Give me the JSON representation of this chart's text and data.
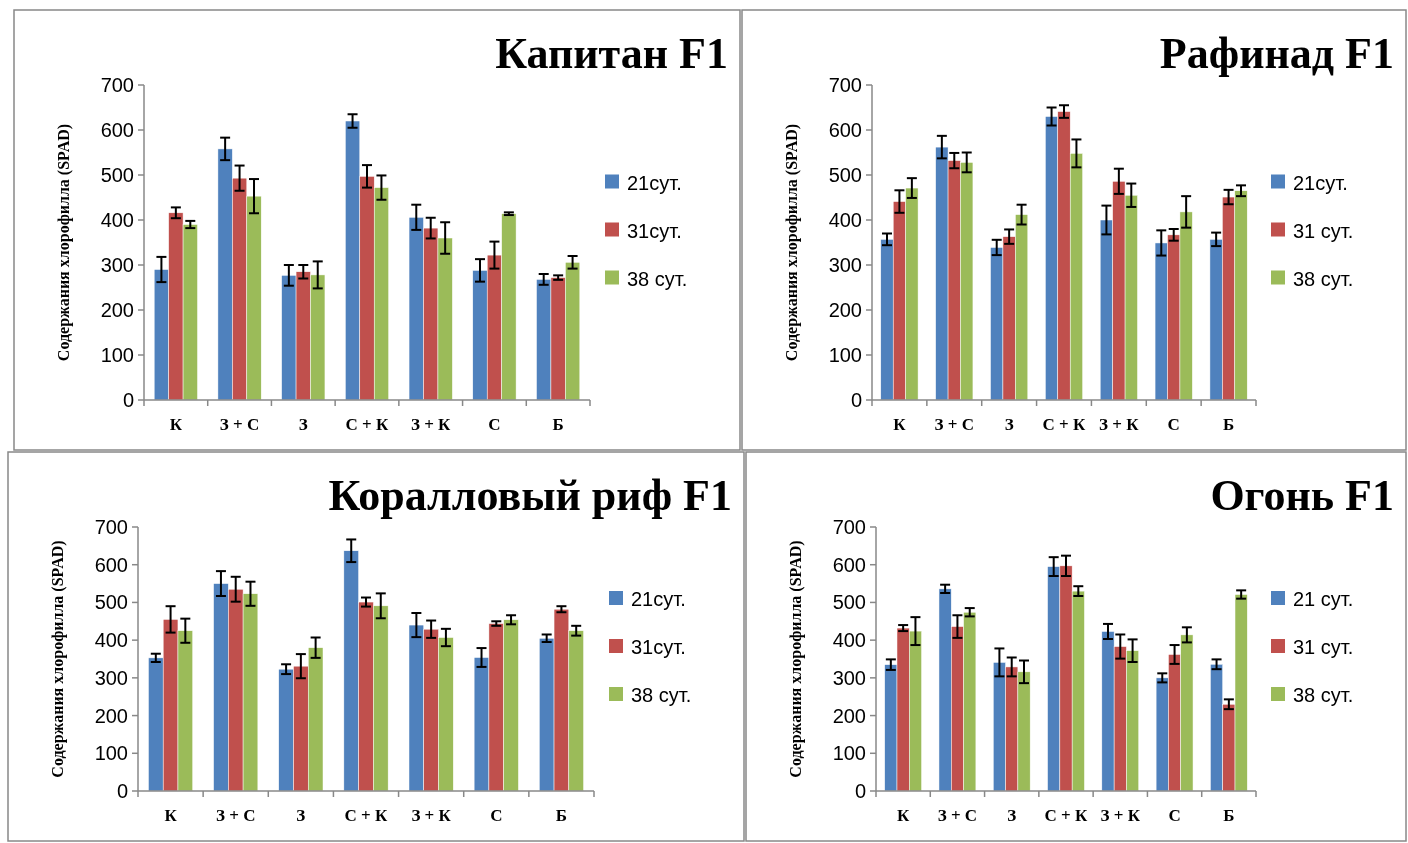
{
  "chart_data": [
    {
      "type": "bar",
      "title": "Капитан F1",
      "ylabel": "Содержания хлорофилла (SPAD)",
      "categories": [
        "К",
        "З + С",
        "З",
        "С + К",
        "З + К",
        "С",
        "Б"
      ],
      "ylim": [
        0,
        700
      ],
      "yticks": [
        0,
        100,
        200,
        300,
        400,
        500,
        600,
        700
      ],
      "legend": "right",
      "series": [
        {
          "name": "21сут.",
          "color": "#4f81bd",
          "values": [
            290,
            558,
            277,
            620,
            406,
            288,
            268
          ],
          "errors": [
            28,
            25,
            23,
            15,
            28,
            25,
            12
          ]
        },
        {
          "name": "31сут.",
          "color": "#c0504d",
          "values": [
            416,
            493,
            285,
            497,
            382,
            322,
            272
          ],
          "errors": [
            12,
            28,
            15,
            25,
            23,
            30,
            5
          ]
        },
        {
          "name": "38 сут.",
          "color": "#9bbb59",
          "values": [
            390,
            453,
            278,
            472,
            360,
            414,
            306
          ],
          "errors": [
            8,
            38,
            30,
            27,
            35,
            3,
            14
          ]
        }
      ]
    },
    {
      "type": "bar",
      "title": "Рафинад F1",
      "ylabel": "Содержания хлорофилла (SPAD)",
      "categories": [
        "К",
        "З + С",
        "З",
        "С + К",
        "З + К",
        "С",
        "Б"
      ],
      "ylim": [
        0,
        700
      ],
      "yticks": [
        0,
        100,
        200,
        300,
        400,
        500,
        600,
        700
      ],
      "legend": "right",
      "series": [
        {
          "name": "21сут.",
          "color": "#4f81bd",
          "values": [
            357,
            562,
            339,
            630,
            400,
            349,
            357
          ],
          "errors": [
            13,
            25,
            17,
            20,
            32,
            28,
            15
          ]
        },
        {
          "name": "31 сут.",
          "color": "#c0504d",
          "values": [
            441,
            532,
            363,
            641,
            486,
            367,
            451
          ],
          "errors": [
            25,
            17,
            16,
            14,
            28,
            13,
            16
          ]
        },
        {
          "name": "38 сут.",
          "color": "#9bbb59",
          "values": [
            471,
            528,
            412,
            548,
            455,
            418,
            465
          ],
          "errors": [
            22,
            22,
            22,
            31,
            26,
            35,
            12
          ]
        }
      ]
    },
    {
      "type": "bar",
      "title": "Коралловый риф F1",
      "ylabel": "Содержания хлорофилла (SPAD)",
      "categories": [
        "К",
        "З + С",
        "З",
        "С + К",
        "З + К",
        "С",
        "Б"
      ],
      "ylim": [
        0,
        700
      ],
      "yticks": [
        0,
        100,
        200,
        300,
        400,
        500,
        600,
        700
      ],
      "legend": "right",
      "series": [
        {
          "name": "21сут.",
          "color": "#4f81bd",
          "values": [
            353,
            550,
            323,
            637,
            440,
            354,
            405
          ],
          "errors": [
            11,
            33,
            13,
            30,
            32,
            25,
            10
          ]
        },
        {
          "name": "31сут.",
          "color": "#c0504d",
          "values": [
            455,
            535,
            331,
            501,
            429,
            444,
            482
          ],
          "errors": [
            35,
            33,
            32,
            12,
            23,
            6,
            8
          ]
        },
        {
          "name": "38 сут.",
          "color": "#9bbb59",
          "values": [
            425,
            523,
            380,
            491,
            407,
            454,
            425
          ],
          "errors": [
            32,
            32,
            27,
            33,
            23,
            12,
            13
          ]
        }
      ]
    },
    {
      "type": "bar",
      "title": "Огонь F1",
      "ylabel": "Содержания хлорофилла (SPAD)",
      "categories": [
        "К",
        "З + С",
        "З",
        "С + К",
        "З + К",
        "С",
        "Б"
      ],
      "ylim": [
        0,
        700
      ],
      "yticks": [
        0,
        100,
        200,
        300,
        400,
        500,
        600,
        700
      ],
      "legend": "right",
      "series": [
        {
          "name": "21 сут.",
          "color": "#4f81bd",
          "values": [
            335,
            536,
            341,
            595,
            423,
            300,
            336
          ],
          "errors": [
            14,
            11,
            37,
            25,
            20,
            12,
            13
          ]
        },
        {
          "name": "31 сут.",
          "color": "#c0504d",
          "values": [
            432,
            436,
            329,
            597,
            383,
            362,
            230
          ],
          "errors": [
            8,
            30,
            25,
            27,
            32,
            25,
            13
          ]
        },
        {
          "name": "38 сут.",
          "color": "#9bbb59",
          "values": [
            424,
            474,
            316,
            530,
            372,
            414,
            521
          ],
          "errors": [
            37,
            11,
            30,
            13,
            30,
            20,
            11
          ]
        }
      ]
    }
  ]
}
